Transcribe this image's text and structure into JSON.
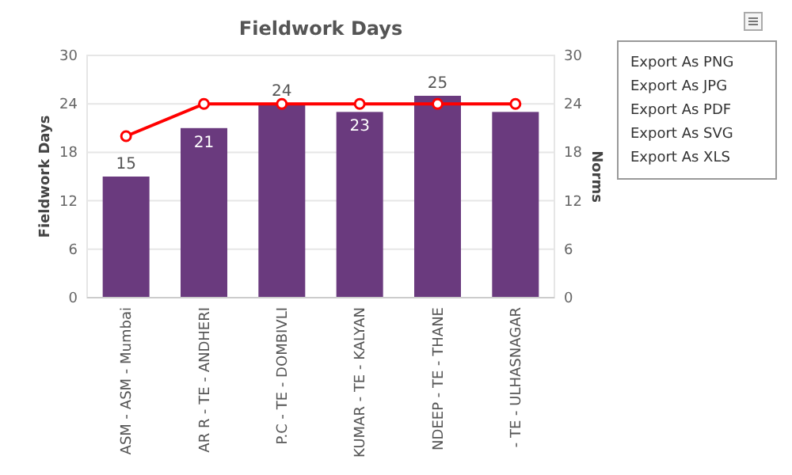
{
  "chart_data": {
    "type": "bar",
    "title": "Fieldwork Days",
    "ylabel": "Fieldwork Days",
    "y2label": "Norms",
    "categories": [
      "ASM - ASM - Mumbai",
      "AR R - TE - ANDHERI",
      "P.C - TE - DOMBIVLI",
      "KUMAR - TE - KALYAN",
      "NDEEP - TE - THANE",
      "- TE - ULHASNAGAR"
    ],
    "series": [
      {
        "color": "#6a3a7e",
        "values": [
          15,
          21,
          24,
          23,
          25,
          23
        ],
        "value_labels": [
          "15",
          "21",
          "24",
          "23",
          "25",
          null
        ]
      },
      {
        "type": "line",
        "axis": "y2",
        "color": "#ff0000",
        "values": [
          20,
          24,
          24,
          24,
          24,
          24
        ]
      }
    ],
    "marker": "circle",
    "line_style": "solid",
    "ylim": [
      0,
      30
    ],
    "yticks": [
      0,
      6,
      12,
      18,
      24,
      30
    ],
    "y2lim": [
      0,
      30
    ],
    "y2ticks": [
      0,
      6,
      12,
      18,
      24,
      30
    ],
    "grid": "y",
    "annotations": [
      "Export As PNG",
      "Export As JPG",
      "Export As PDF",
      "Export As SVG",
      "Export As XLS"
    ]
  }
}
